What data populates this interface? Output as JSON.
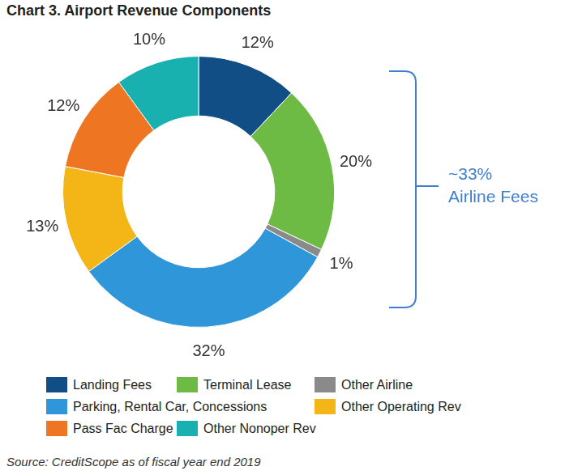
{
  "chart_data": {
    "type": "doughnut",
    "title": "Chart 3. Airport Revenue Components",
    "categories": [
      "Landing Fees",
      "Terminal Lease",
      "Other Airline",
      "Parking, Rental Car, Concessions",
      "Other Operating Rev",
      "Pass Fac Charge",
      "Other Nonoper Rev"
    ],
    "values": [
      12,
      20,
      1,
      32,
      13,
      12,
      10
    ],
    "value_labels": [
      "12%",
      "20%",
      "1%",
      "32%",
      "13%",
      "12%",
      "10%"
    ],
    "colors": [
      "#124e86",
      "#6dbb45",
      "#8a8a8a",
      "#2f97d9",
      "#f4b617",
      "#ee7623",
      "#19b0b0"
    ],
    "data_labels": true,
    "legend": "bottom",
    "annotations": [
      {
        "text": "~33%"
      },
      {
        "text": "Airline Fees"
      }
    ],
    "source": "Source: CreditScope as of fiscal year end 2019"
  }
}
